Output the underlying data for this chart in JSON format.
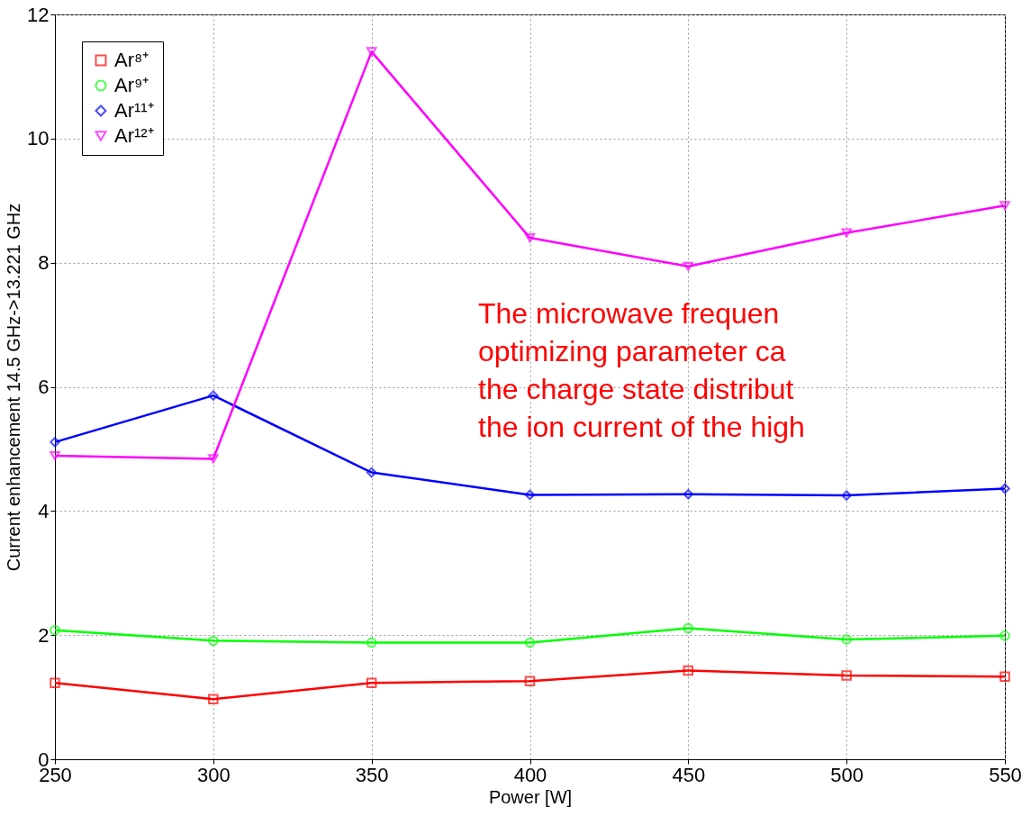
{
  "chart_data": {
    "type": "line",
    "xlabel": "Power [W]",
    "ylabel": "Current enhancement 14.5 GHz->13.221 GHz",
    "x": [
      250,
      300,
      350,
      400,
      450,
      500,
      550
    ],
    "series": [
      {
        "name": "Ar⁸⁺",
        "color": "#ff0000",
        "marker": "square",
        "values": [
          1.23,
          0.97,
          1.23,
          1.26,
          1.43,
          1.35,
          1.33
        ]
      },
      {
        "name": "Ar⁹⁺",
        "color": "#00ff00",
        "marker": "circle",
        "values": [
          2.08,
          1.91,
          1.88,
          1.88,
          2.11,
          1.93,
          1.99
        ]
      },
      {
        "name": "Ar¹¹⁺",
        "color": "#0000ff",
        "marker": "diamond",
        "values": [
          5.11,
          5.86,
          4.62,
          4.26,
          4.27,
          4.25,
          4.36
        ]
      },
      {
        "name": "Ar¹²⁺",
        "color": "#ff00ff",
        "marker": "triangle-down",
        "values": [
          4.89,
          4.84,
          11.4,
          8.4,
          7.94,
          8.48,
          8.92
        ]
      }
    ],
    "xlim": [
      250,
      550
    ],
    "xticks": [
      250,
      300,
      350,
      400,
      450,
      500,
      550
    ],
    "ylim": [
      0,
      12
    ],
    "yticks": [
      0,
      2,
      4,
      6,
      8,
      10,
      12
    ],
    "grid": true,
    "legend": "top left",
    "line_style": "solid",
    "annotations": [
      "The microwave frequen",
      "optimizing parameter ca",
      "the charge state distribut",
      "the ion current of the high"
    ]
  }
}
